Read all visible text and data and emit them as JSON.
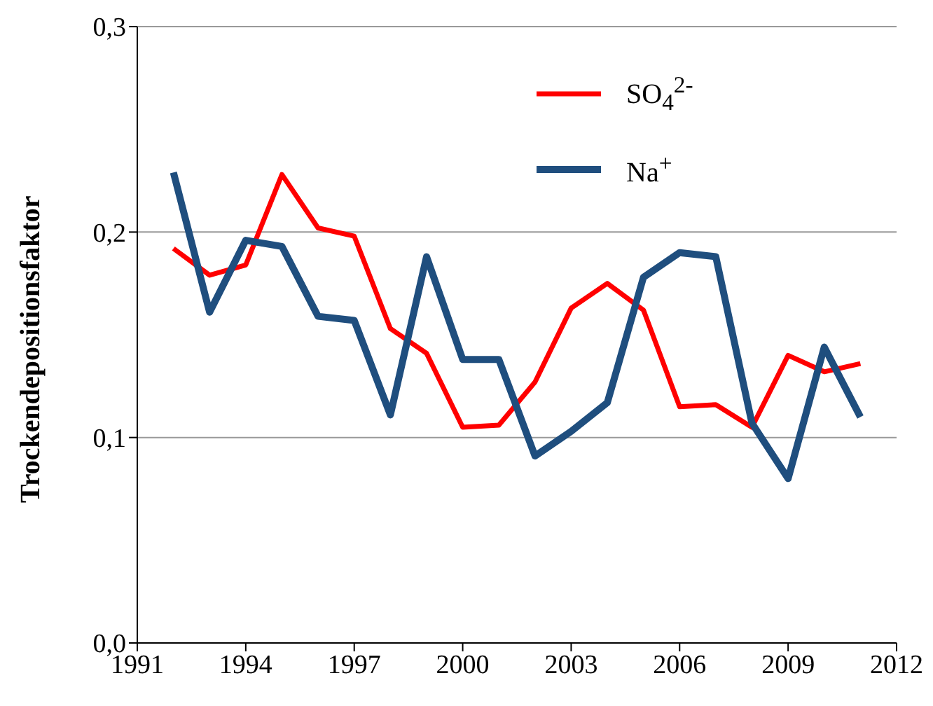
{
  "chart_data": {
    "type": "line",
    "ylabel": "Trockendepositionsfaktor",
    "x": [
      1992,
      1993,
      1994,
      1995,
      1996,
      1997,
      1998,
      1999,
      2000,
      2001,
      2002,
      2003,
      2004,
      2005,
      2006,
      2007,
      2008,
      2009,
      2010,
      2011
    ],
    "series": [
      {
        "name": "SO$_{4}$$^{2-}$",
        "color": "#ff0000",
        "values": [
          0.192,
          0.179,
          0.184,
          0.228,
          0.202,
          0.198,
          0.153,
          0.141,
          0.105,
          0.106,
          0.127,
          0.163,
          0.175,
          0.162,
          0.115,
          0.116,
          0.105,
          0.14,
          0.132,
          0.136
        ]
      },
      {
        "name": "Na$^{+}$",
        "color": "#1f4e7e",
        "values": [
          0.229,
          0.161,
          0.196,
          0.193,
          0.159,
          0.157,
          0.111,
          0.188,
          0.138,
          0.138,
          0.091,
          0.103,
          0.117,
          0.178,
          0.19,
          0.188,
          0.107,
          0.08,
          0.144,
          0.11
        ]
      }
    ],
    "xlim": [
      1991,
      2012
    ],
    "xticks": [
      1991,
      1994,
      1997,
      2000,
      2003,
      2006,
      2009,
      2012
    ],
    "ylim": [
      0,
      0.3
    ],
    "yticks": [
      {
        "value": 0,
        "label": "0,0"
      },
      {
        "value": 0.1,
        "label": "0,1"
      },
      {
        "value": 0.2,
        "label": "0,2"
      },
      {
        "value": 0.3,
        "label": "0,3"
      }
    ],
    "grid": "y",
    "legend": "top right",
    "marker": "none",
    "line_style": "solid"
  }
}
